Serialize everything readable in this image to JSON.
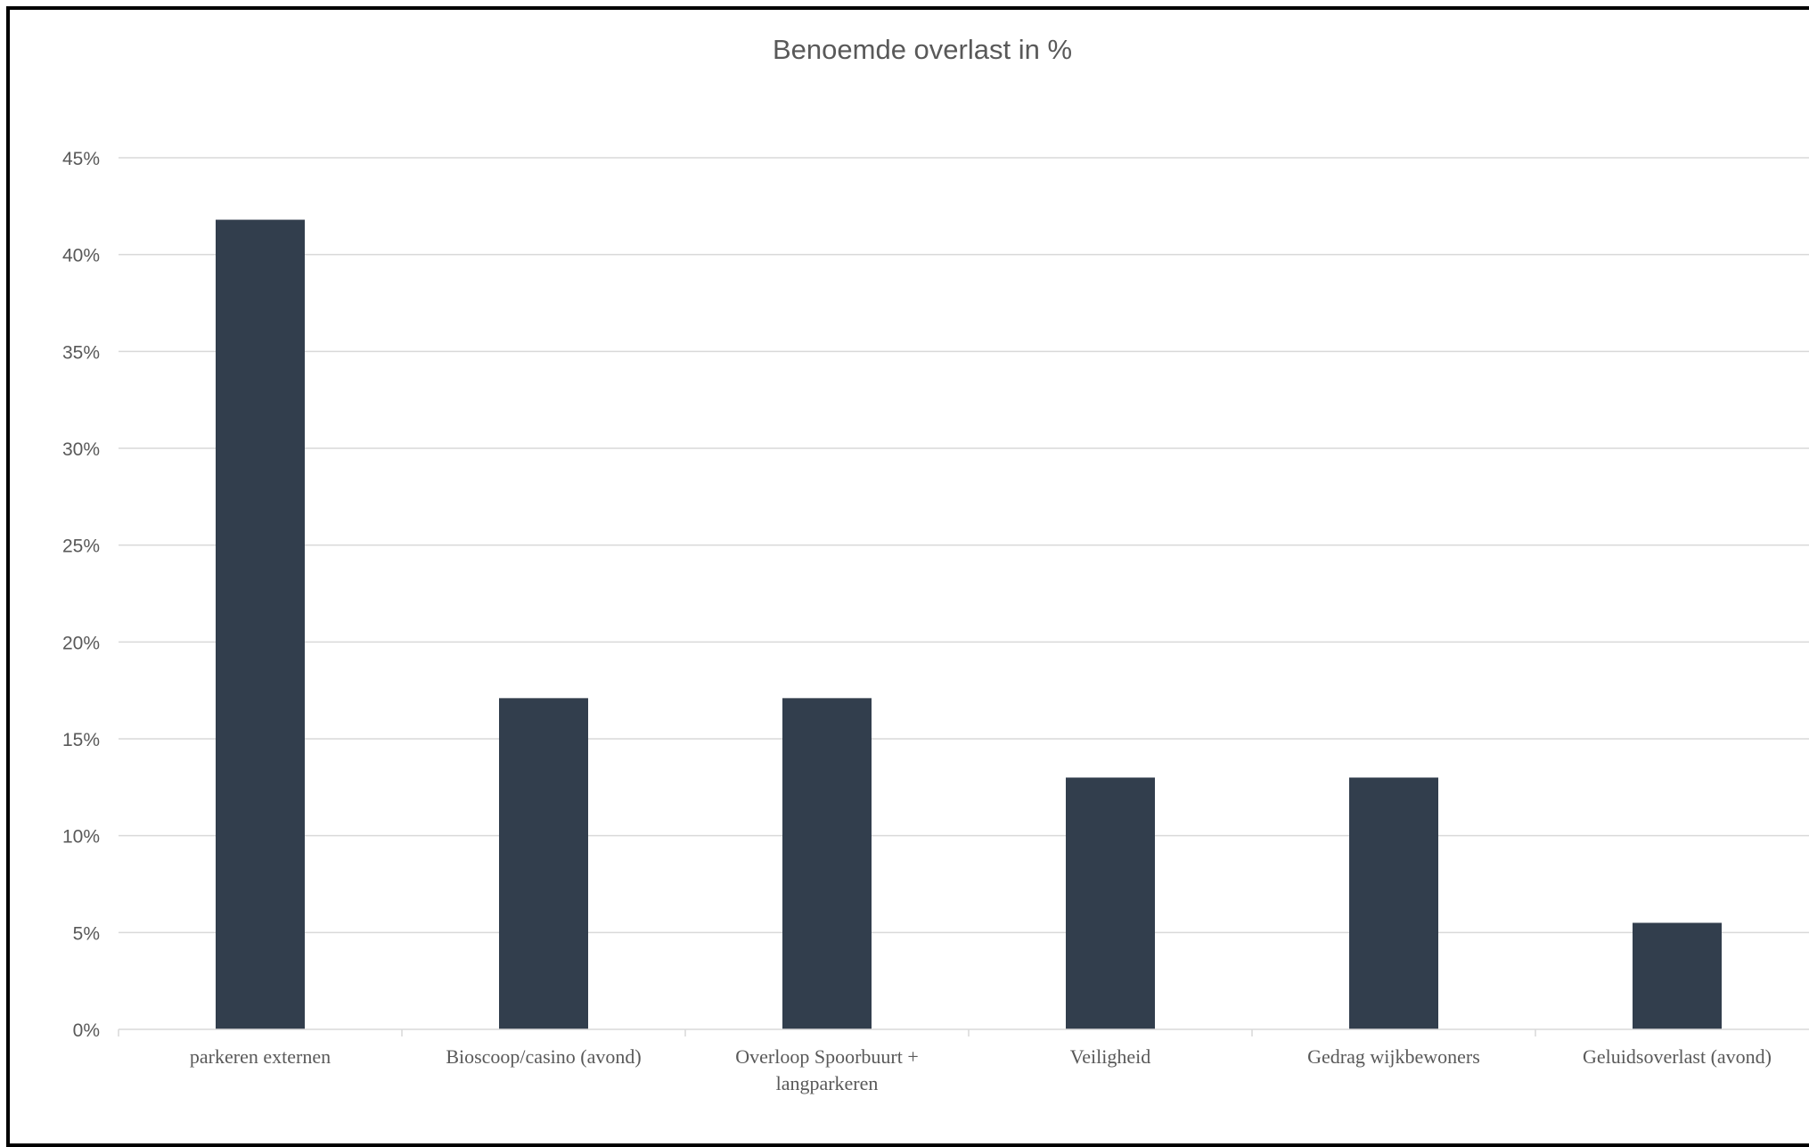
{
  "chart_data": {
    "type": "bar",
    "title": "Benoemde overlast in %",
    "xlabel": "",
    "ylabel": "",
    "categories": [
      "parkeren externen",
      "Bioscoop/casino (avond)",
      "Overloop Spoorbuurt + langparkeren",
      "Veiligheid",
      "Gedrag wijkbewoners",
      "Geluidsoverlast (avond)"
    ],
    "category_lines": [
      [
        "parkeren externen"
      ],
      [
        "Bioscoop/casino (avond)"
      ],
      [
        "Overloop Spoorbuurt +",
        "langparkeren"
      ],
      [
        "Veiligheid"
      ],
      [
        "Gedrag wijkbewoners"
      ],
      [
        "Geluidsoverlast (avond)"
      ]
    ],
    "values": [
      41.8,
      17.1,
      17.1,
      13.0,
      13.0,
      5.5
    ],
    "ylim": [
      0,
      45
    ],
    "yticks": [
      0,
      5,
      10,
      15,
      20,
      25,
      30,
      35,
      40,
      45
    ],
    "ytick_labels": [
      "0%",
      "5%",
      "10%",
      "15%",
      "20%",
      "25%",
      "30%",
      "35%",
      "40%",
      "45%"
    ],
    "grid": true,
    "legend": "none",
    "bar_color": "#323e4d",
    "gridline_color": "#d9d9d9",
    "text_color": "#595959"
  }
}
